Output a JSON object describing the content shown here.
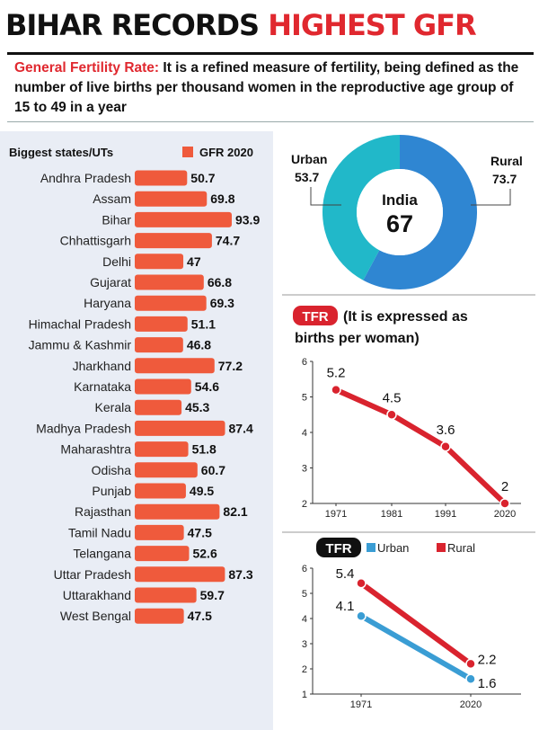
{
  "headline": {
    "part1": "BIHAR RECORDS ",
    "part2": "HIGHEST GFR"
  },
  "intro": {
    "term": "General Fertility Rate:",
    "text": " It is a refined measure of fertility, being defined as the number of live births per thousand women in the reproductive age group of 15 to 49 in a year"
  },
  "colors": {
    "bar": "#ef5a3c",
    "urban": "#3a9dd4",
    "rural": "#d9232e",
    "donut_urban": "#21b8c9",
    "donut_rural": "#2f86d2",
    "panel": "#e9edf5"
  },
  "chart_data": [
    {
      "type": "bar",
      "orientation": "horizontal",
      "header": "Biggest states/UTs",
      "legend": "GFR 2020",
      "categories": [
        "Andhra Pradesh",
        "Assam",
        "Bihar",
        "Chhattisgarh",
        "Delhi",
        "Gujarat",
        "Haryana",
        "Himachal Pradesh",
        "Jammu & Kashmir",
        "Jharkhand",
        "Karnataka",
        "Kerala",
        "Madhya Pradesh",
        "Maharashtra",
        "Odisha",
        "Punjab",
        "Rajasthan",
        "Tamil Nadu",
        "Telangana",
        "Uttar Pradesh",
        "Uttarakhand",
        "West Bengal"
      ],
      "values": [
        50.7,
        69.8,
        93.9,
        74.7,
        47,
        66.8,
        69.3,
        51.1,
        46.8,
        77.2,
        54.6,
        45.3,
        87.4,
        51.8,
        60.7,
        49.5,
        82.1,
        47.5,
        52.6,
        87.3,
        59.7,
        47.5
      ],
      "value_labels": [
        "50.7",
        "69.8",
        "93.9",
        "74.7",
        "47",
        "66.8",
        "69.3",
        "51.1",
        "46.8",
        "77.2",
        "54.6",
        "45.3",
        "87.4",
        "51.8",
        "60.7",
        "49.5",
        "82.1",
        "47.5",
        "52.6",
        "87.3",
        "59.7",
        "47.5"
      ]
    },
    {
      "type": "pie",
      "center_label": "India",
      "center_value": "67",
      "slices": [
        {
          "name": "Urban",
          "value": 53.7,
          "label": "53.7"
        },
        {
          "name": "Rural",
          "value": 73.7,
          "label": "73.7"
        }
      ]
    },
    {
      "type": "line",
      "badge": "TFR",
      "title_line1": "(It is expressed as",
      "title_line2": "births per woman)",
      "x": [
        "1971",
        "1981",
        "1991",
        "2020"
      ],
      "values": [
        5.2,
        4.5,
        3.6,
        2
      ],
      "value_labels": [
        "5.2",
        "4.5",
        "3.6",
        "2"
      ],
      "ylim": [
        2,
        6
      ],
      "yticks": [
        "2",
        "3",
        "4",
        "5",
        "6"
      ]
    },
    {
      "type": "line",
      "badge": "TFR",
      "x": [
        "1971",
        "2020"
      ],
      "series": [
        {
          "name": "Urban",
          "values": [
            4.1,
            1.6
          ],
          "value_labels": [
            "4.1",
            "1.6"
          ]
        },
        {
          "name": "Rural",
          "values": [
            5.4,
            2.2
          ],
          "value_labels": [
            "5.4",
            "2.2"
          ]
        }
      ],
      "ylim": [
        1,
        6
      ],
      "yticks": [
        "1",
        "2",
        "3",
        "4",
        "5",
        "6"
      ]
    }
  ]
}
